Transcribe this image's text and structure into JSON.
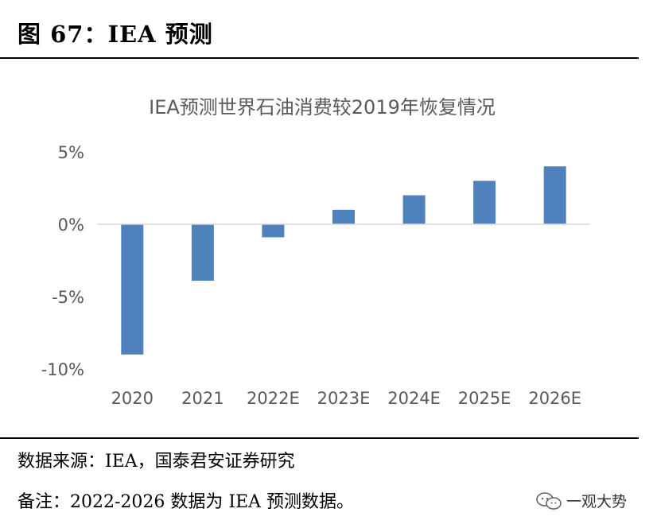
{
  "figure": {
    "title": "图 67：IEA 预测"
  },
  "chart_data": {
    "type": "bar",
    "title": "IEA预测世界石油消费较2019年恢复情况",
    "xlabel": "",
    "ylabel": "",
    "categories": [
      "2020",
      "2021",
      "2022E",
      "2023E",
      "2024E",
      "2025E",
      "2026E"
    ],
    "values": [
      -9.0,
      -3.9,
      -0.9,
      1.0,
      2.0,
      3.0,
      4.0
    ],
    "unit": "%",
    "ylim": [
      -10,
      5
    ],
    "yticks": [
      5,
      0,
      -5,
      -10
    ],
    "ytick_labels": [
      "5%",
      "0%",
      "-5%",
      "-10%"
    ],
    "bar_color": "#4f81bd",
    "axis_color": "#d9d9d9",
    "grid": false,
    "legend": "none"
  },
  "footer": {
    "source": "数据来源：IEA，国泰君安证券研究",
    "note": "备注：2022-2026 数据为 IEA 预测数据。"
  },
  "watermark": {
    "text": "一观大势",
    "icon": "wechat-icon"
  }
}
